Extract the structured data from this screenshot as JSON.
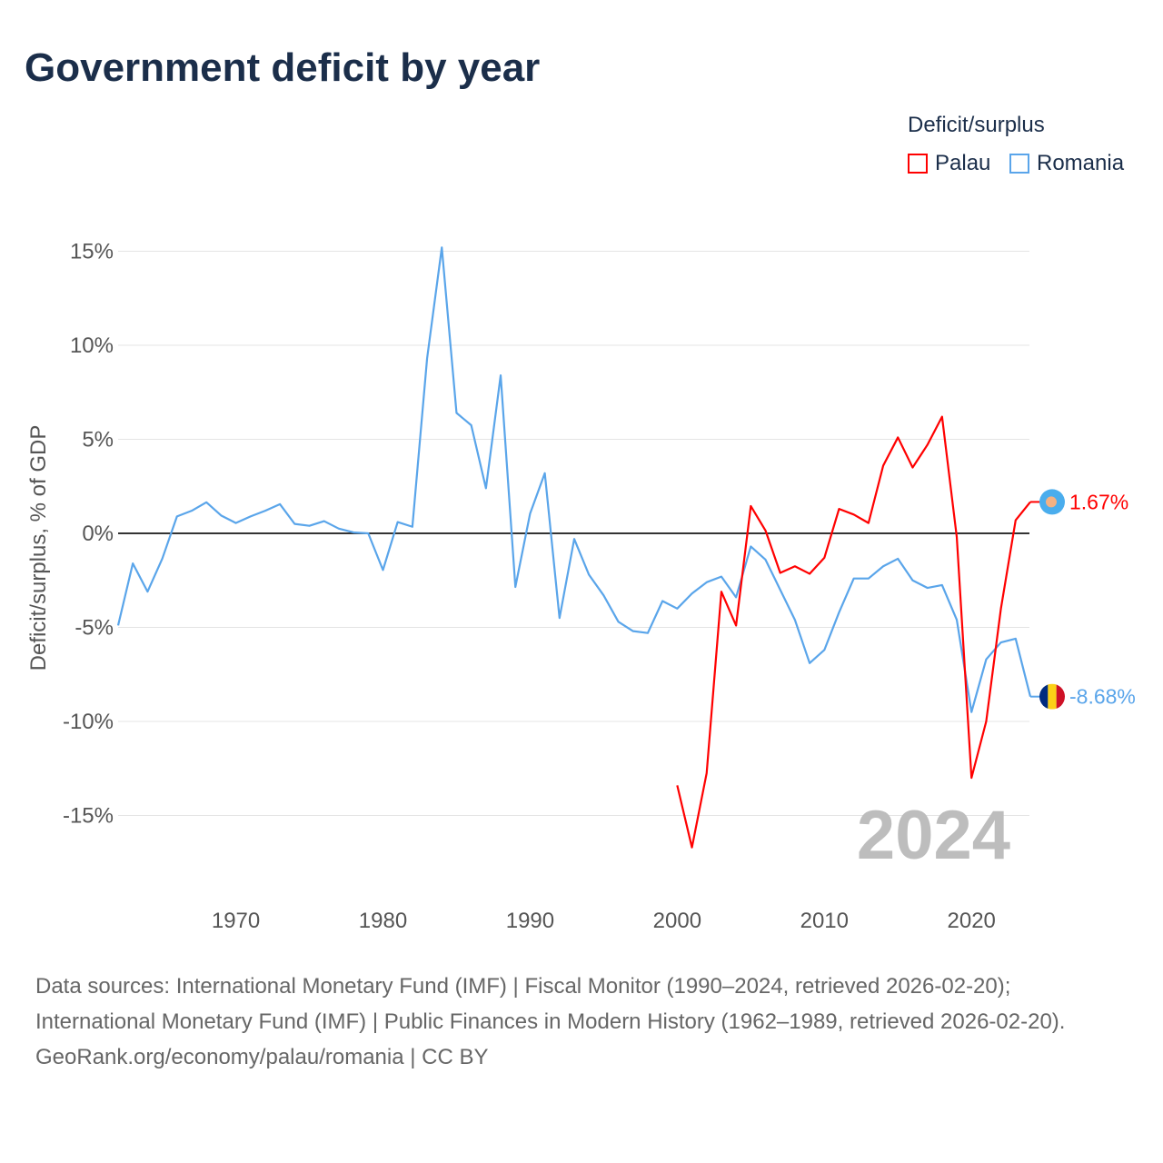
{
  "title": "Government deficit by year",
  "legend": {
    "title": "Deficit/surplus",
    "items": [
      {
        "name": "Palau",
        "color": "#ff0000"
      },
      {
        "name": "Romania",
        "color": "#5aa5ea"
      }
    ]
  },
  "chart_data": {
    "type": "line",
    "title": "Government deficit by year",
    "xlabel": "",
    "ylabel": "Deficit/surplus, % of GDP",
    "xlim": [
      1962,
      2024
    ],
    "ylim": [
      -18,
      17
    ],
    "x_ticks": [
      1970,
      1980,
      1990,
      2000,
      2010,
      2020
    ],
    "y_ticks": [
      15,
      10,
      5,
      0,
      -5,
      -10,
      -15
    ],
    "y_tick_labels": [
      "15%",
      "10%",
      "5%",
      "0%",
      "-5%",
      "-10%",
      "-15%"
    ],
    "grid": true,
    "legend_position": "top-right",
    "year_annotation": "2024",
    "series": [
      {
        "name": "Palau",
        "color": "#ff0000",
        "end_label": "1.67%",
        "x": [
          2000,
          2001,
          2002,
          2003,
          2004,
          2005,
          2006,
          2007,
          2008,
          2009,
          2010,
          2011,
          2012,
          2013,
          2014,
          2015,
          2016,
          2017,
          2018,
          2019,
          2020,
          2021,
          2022,
          2023,
          2024
        ],
        "values": [
          -13.4,
          -16.7,
          -12.75,
          -3.1,
          -4.9,
          1.45,
          0.15,
          -2.1,
          -1.75,
          -2.15,
          -1.3,
          1.3,
          1.0,
          0.55,
          3.6,
          5.1,
          3.5,
          4.7,
          6.2,
          -0.2,
          -13.0,
          -10.0,
          -4.0,
          0.7,
          1.67
        ]
      },
      {
        "name": "Romania",
        "color": "#5aa5ea",
        "end_label": "-8.68%",
        "x": [
          1962,
          1963,
          1964,
          1965,
          1966,
          1967,
          1968,
          1969,
          1970,
          1971,
          1972,
          1973,
          1974,
          1975,
          1976,
          1977,
          1978,
          1979,
          1980,
          1981,
          1982,
          1983,
          1984,
          1985,
          1986,
          1987,
          1988,
          1989,
          1990,
          1991,
          1992,
          1993,
          1994,
          1995,
          1996,
          1997,
          1998,
          1999,
          2000,
          2001,
          2002,
          2003,
          2004,
          2005,
          2006,
          2007,
          2008,
          2009,
          2010,
          2011,
          2012,
          2013,
          2014,
          2015,
          2016,
          2017,
          2018,
          2019,
          2020,
          2021,
          2022,
          2023,
          2024
        ],
        "values": [
          -4.9,
          -1.6,
          -3.1,
          -1.35,
          0.9,
          1.2,
          1.65,
          0.95,
          0.55,
          0.9,
          1.2,
          1.55,
          0.5,
          0.4,
          0.65,
          0.25,
          0.05,
          0,
          -1.95,
          0.6,
          0.35,
          9.3,
          15.2,
          6.4,
          5.75,
          2.4,
          8.4,
          -2.85,
          1.05,
          3.2,
          -4.5,
          -0.3,
          -2.2,
          -3.3,
          -4.7,
          -5.2,
          -5.3,
          -3.6,
          -4.0,
          -3.2,
          -2.6,
          -2.3,
          -3.4,
          -0.7,
          -1.4,
          -3.0,
          -4.6,
          -6.9,
          -6.2,
          -4.2,
          -2.4,
          -2.4,
          -1.75,
          -1.35,
          -2.5,
          -2.9,
          -2.75,
          -4.6,
          -9.5,
          -6.7,
          -5.8,
          -5.6,
          -8.68
        ]
      }
    ]
  },
  "footer": {
    "sources": "Data sources: International Monetary Fund (IMF) | Fiscal Monitor (1990–2024, retrieved 2026-02-20); International Monetary Fund (IMF) | Public Finances in Modern History (1962–1989, retrieved 2026-02-20).",
    "credit": "GeoRank.org/economy/palau/romania | CC BY"
  }
}
